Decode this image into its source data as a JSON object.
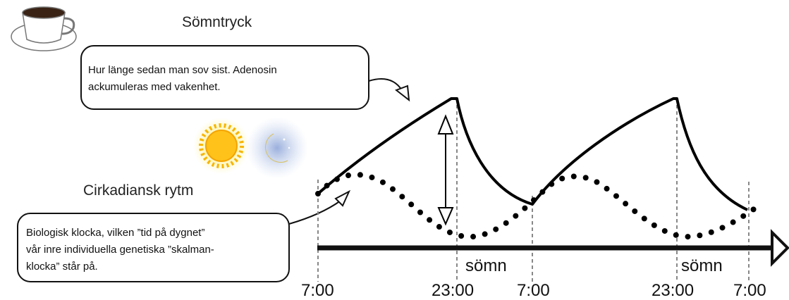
{
  "title_pressure": "Sömntryck",
  "callout_pressure": {
    "lines": [
      "Hur länge sedan man sov sist. Adenosin",
      "ackumuleras med vakenhet."
    ]
  },
  "title_circadian": "Cirkadiansk rytm",
  "callout_circadian": {
    "lines": [
      "Biologisk klocka, vilken ”tid på dygnet”",
      "vår inre individuella genetiska ”skalman-",
      "klocka” står på."
    ]
  },
  "sleep_labels": [
    "sömn",
    "sömn"
  ],
  "time_labels": [
    "7:00",
    "23:00",
    "7:00",
    "23:00",
    "7:00"
  ]
}
